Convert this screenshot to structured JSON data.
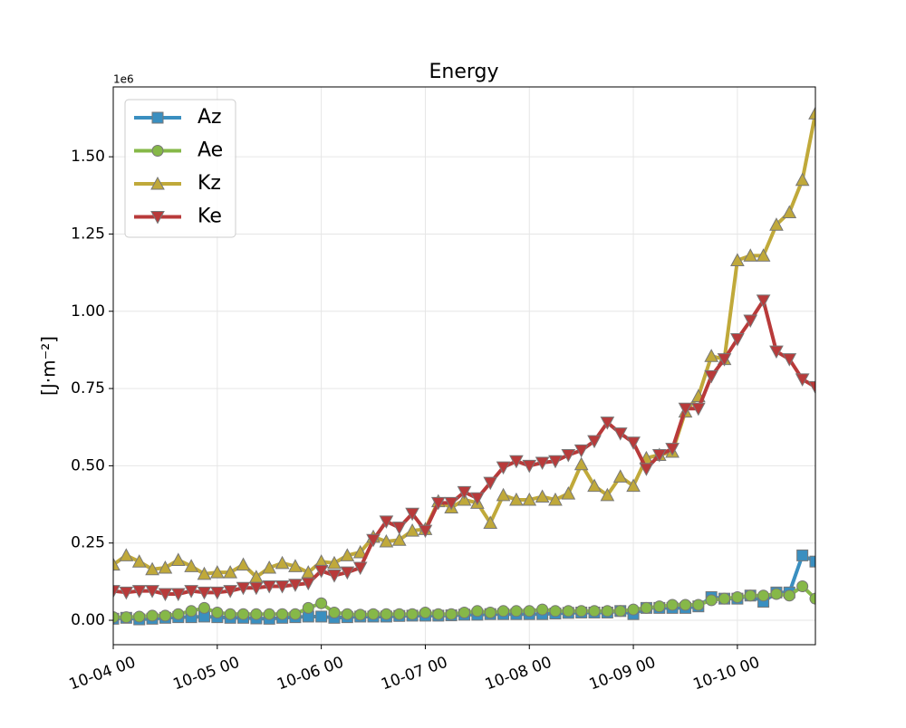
{
  "chart_data": {
    "type": "line",
    "title": "Energy",
    "ylabel": "[J·m⁻²]",
    "y_offset_label": "1e6",
    "x": [
      "10-04 00",
      "10-04 03",
      "10-04 06",
      "10-04 09",
      "10-04 12",
      "10-04 15",
      "10-04 18",
      "10-04 21",
      "10-05 00",
      "10-05 03",
      "10-05 06",
      "10-05 09",
      "10-05 12",
      "10-05 15",
      "10-05 18",
      "10-05 21",
      "10-06 00",
      "10-06 03",
      "10-06 06",
      "10-06 09",
      "10-06 12",
      "10-06 15",
      "10-06 18",
      "10-06 21",
      "10-07 00",
      "10-07 03",
      "10-07 06",
      "10-07 09",
      "10-07 12",
      "10-07 15",
      "10-07 18",
      "10-07 21",
      "10-08 00",
      "10-08 03",
      "10-08 06",
      "10-08 09",
      "10-08 12",
      "10-08 15",
      "10-08 18",
      "10-08 21",
      "10-09 00",
      "10-09 03",
      "10-09 06",
      "10-09 09",
      "10-09 12",
      "10-09 15",
      "10-09 18",
      "10-09 21",
      "10-10 00",
      "10-10 03",
      "10-10 06",
      "10-10 09",
      "10-10 12",
      "10-10 15",
      "10-10 18"
    ],
    "series": [
      {
        "name": "Az",
        "color": "#3a8fc0",
        "marker": "square",
        "values": [
          5000,
          8000,
          3000,
          5000,
          8000,
          10000,
          10000,
          12000,
          10000,
          8000,
          8000,
          6000,
          5000,
          8000,
          10000,
          12000,
          12000,
          8000,
          10000,
          12000,
          12000,
          12000,
          14000,
          15000,
          15000,
          15000,
          16000,
          18000,
          18000,
          20000,
          20000,
          20000,
          20000,
          20000,
          22000,
          24000,
          25000,
          25000,
          25000,
          30000,
          20000,
          40000,
          40000,
          40000,
          40000,
          45000,
          75000,
          70000,
          70000,
          80000,
          60000,
          90000,
          90000,
          210000,
          190000
        ]
      },
      {
        "name": "Ae",
        "color": "#86b848",
        "marker": "circle",
        "values": [
          10000,
          10000,
          12000,
          15000,
          15000,
          20000,
          30000,
          40000,
          25000,
          20000,
          20000,
          20000,
          20000,
          20000,
          20000,
          40000,
          55000,
          25000,
          20000,
          18000,
          20000,
          20000,
          20000,
          20000,
          25000,
          20000,
          20000,
          25000,
          30000,
          25000,
          30000,
          30000,
          30000,
          35000,
          30000,
          30000,
          30000,
          30000,
          30000,
          30000,
          35000,
          40000,
          45000,
          50000,
          50000,
          50000,
          65000,
          70000,
          75000,
          80000,
          80000,
          85000,
          80000,
          110000,
          70000
        ]
      },
      {
        "name": "Kz",
        "color": "#c0a93a",
        "marker": "triangle-up",
        "values": [
          180000,
          210000,
          190000,
          165000,
          170000,
          195000,
          175000,
          150000,
          155000,
          155000,
          180000,
          140000,
          170000,
          185000,
          175000,
          155000,
          190000,
          185000,
          210000,
          220000,
          270000,
          255000,
          260000,
          290000,
          295000,
          385000,
          365000,
          390000,
          380000,
          315000,
          405000,
          390000,
          390000,
          400000,
          390000,
          410000,
          505000,
          435000,
          405000,
          465000,
          435000,
          525000,
          535000,
          545000,
          675000,
          725000,
          855000,
          845000,
          1165000,
          1180000,
          1180000,
          1280000,
          1320000,
          1425000,
          1640000
        ]
      },
      {
        "name": "Ke",
        "color": "#b83a3a",
        "marker": "triangle-down",
        "values": [
          95000,
          90000,
          95000,
          95000,
          85000,
          85000,
          95000,
          90000,
          90000,
          95000,
          105000,
          105000,
          110000,
          110000,
          115000,
          120000,
          160000,
          145000,
          155000,
          170000,
          260000,
          320000,
          300000,
          345000,
          290000,
          380000,
          380000,
          415000,
          395000,
          445000,
          495000,
          515000,
          500000,
          510000,
          515000,
          535000,
          550000,
          580000,
          640000,
          605000,
          575000,
          490000,
          535000,
          555000,
          685000,
          685000,
          790000,
          845000,
          910000,
          970000,
          1035000,
          870000,
          845000,
          780000,
          755000
        ]
      }
    ],
    "xlim": [
      "10-04 00",
      "10-10 18"
    ],
    "xticks": [
      "10-04 00",
      "10-05 00",
      "10-06 00",
      "10-07 00",
      "10-08 00",
      "10-09 00",
      "10-10 00"
    ],
    "ylim": [
      -79000,
      1726000
    ],
    "yticks": [
      {
        "value": 0,
        "label": "0.00"
      },
      {
        "value": 250000,
        "label": "0.25"
      },
      {
        "value": 500000,
        "label": "0.50"
      },
      {
        "value": 750000,
        "label": "0.75"
      },
      {
        "value": 1000000,
        "label": "1.00"
      },
      {
        "value": 1250000,
        "label": "1.25"
      },
      {
        "value": 1500000,
        "label": "1.50"
      }
    ],
    "grid": true,
    "legend": "upper-left"
  }
}
